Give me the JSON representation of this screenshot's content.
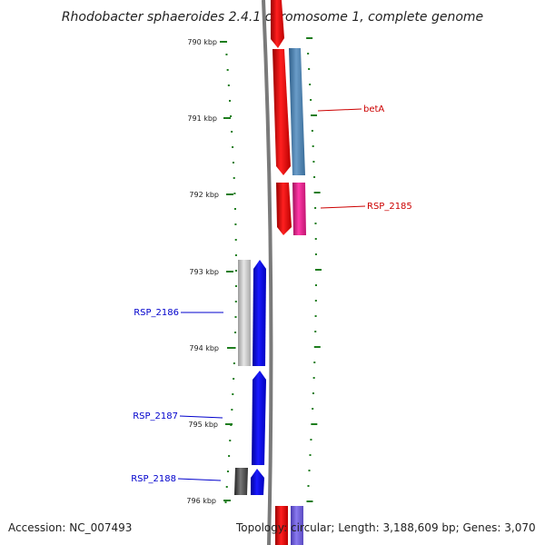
{
  "title": "Rhodobacter sphaeroides 2.4.1 chromosome 1, complete genome",
  "accession": "Accession: NC_007493",
  "topology": "Topology: circular; Length: 3,188,609 bp; Genes: 3,070",
  "kbp_labels": [
    {
      "label": "790 kbp",
      "kbp": 790
    },
    {
      "label": "791 kbp",
      "kbp": 791
    },
    {
      "label": "792 kbp",
      "kbp": 792
    },
    {
      "label": "793 kbp",
      "kbp": 793
    },
    {
      "label": "794 kbp",
      "kbp": 794
    },
    {
      "label": "795 kbp",
      "kbp": 795
    },
    {
      "label": "796 kbp",
      "kbp": 796
    }
  ],
  "gene_labels": [
    {
      "label": "betA",
      "color": "#cc0000",
      "side": "right"
    },
    {
      "label": "RSP_2185",
      "color": "#cc0000",
      "side": "right"
    },
    {
      "label": "RSP_2186",
      "color": "#0000cc",
      "side": "left"
    },
    {
      "label": "RSP_2187",
      "color": "#0000cc",
      "side": "left"
    },
    {
      "label": "RSP_2188",
      "color": "#0000cc",
      "side": "left"
    }
  ],
  "colors": {
    "forward_gene": "#ee0000",
    "reverse_gene": "#0000ee",
    "forward_cds": "#4a7fb0",
    "forward_cds_alt": "#e8208a",
    "reverse_cds": "#c8c8c8",
    "reverse_cds_dark": "#505050",
    "tick": "#1e7d1e",
    "backbone": "#808080"
  }
}
